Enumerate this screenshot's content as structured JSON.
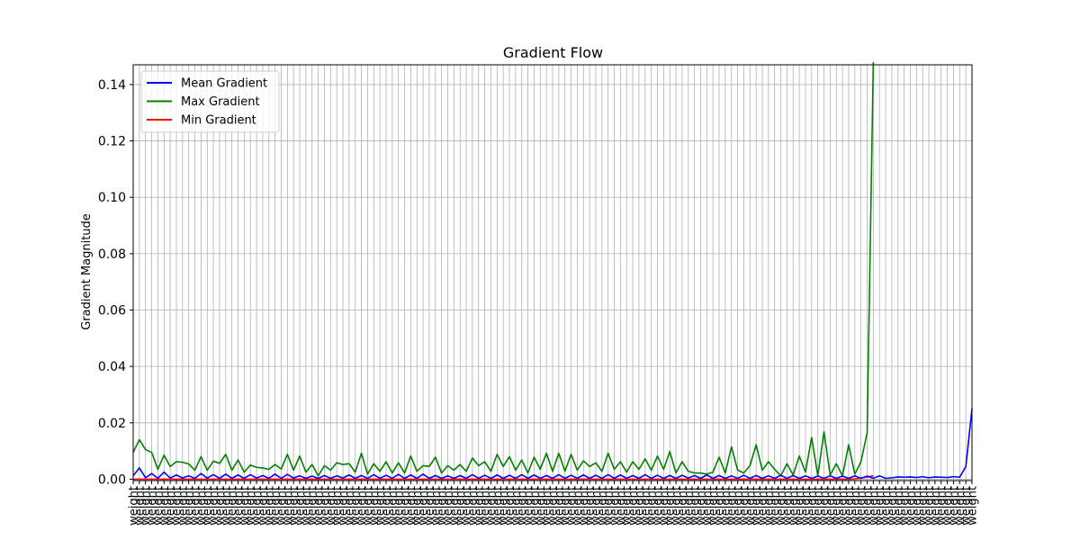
{
  "chart_data": {
    "type": "line",
    "title": "Gradient Flow",
    "xlabel": "",
    "ylabel": "Gradient Magnitude",
    "x_tick_label": "weight",
    "ylim": [
      -0.0005,
      0.147
    ],
    "yticks": [
      0.0,
      0.02,
      0.04,
      0.06,
      0.08,
      0.1,
      0.12,
      0.14
    ],
    "ytick_labels": [
      "0.00",
      "0.02",
      "0.04",
      "0.06",
      "0.08",
      "0.10",
      "0.12",
      "0.14"
    ],
    "grid": true,
    "legend_position": "top-left",
    "series": [
      {
        "name": "Mean Gradient",
        "color": "#0000ff",
        "values": [
          0.0012,
          0.004,
          0.0005,
          0.002,
          0.0003,
          0.0025,
          0.0004,
          0.0015,
          0.0004,
          0.0012,
          0.0003,
          0.002,
          0.0004,
          0.0016,
          0.0003,
          0.0018,
          0.0003,
          0.0015,
          0.0003,
          0.0016,
          0.0004,
          0.0013,
          0.0003,
          0.0018,
          0.0003,
          0.0017,
          0.0004,
          0.0012,
          0.0003,
          0.0011,
          0.0003,
          0.0013,
          0.0003,
          0.0012,
          0.0004,
          0.0015,
          0.0003,
          0.0013,
          0.0003,
          0.0016,
          0.0003,
          0.0014,
          0.0003,
          0.0017,
          0.0003,
          0.0015,
          0.0003,
          0.0018,
          0.0003,
          0.0013,
          0.0003,
          0.0012,
          0.0003,
          0.0013,
          0.0003,
          0.0016,
          0.0003,
          0.0014,
          0.0003,
          0.0015,
          0.0003,
          0.0014,
          0.0003,
          0.0016,
          0.0003,
          0.0015,
          0.0003,
          0.0013,
          0.0003,
          0.0016,
          0.0003,
          0.0014,
          0.0003,
          0.0015,
          0.0003,
          0.0014,
          0.0003,
          0.0016,
          0.0003,
          0.0015,
          0.0003,
          0.0013,
          0.0003,
          0.0016,
          0.0003,
          0.0014,
          0.0003,
          0.0013,
          0.0003,
          0.0014,
          0.0004,
          0.0013,
          0.0003,
          0.0015,
          0.0003,
          0.0013,
          0.0003,
          0.0012,
          0.0003,
          0.0014,
          0.0003,
          0.0013,
          0.0003,
          0.0012,
          0.0003,
          0.0014,
          0.0003,
          0.0013,
          0.0003,
          0.0012,
          0.0003,
          0.0011,
          0.0003,
          0.0012,
          0.0003,
          0.0011,
          0.0003,
          0.0012,
          0.0003,
          0.0011,
          0.0003,
          0.0012,
          0.0003,
          0.0005,
          0.0008,
          0.0007,
          0.0008,
          0.0006,
          0.0009,
          0.0005,
          0.0008,
          0.0007,
          0.0006,
          0.0009,
          0.0007,
          0.0045,
          0.025
        ]
      },
      {
        "name": "Max Gradient",
        "color": "#008000",
        "values": [
          0.0095,
          0.014,
          0.0105,
          0.0095,
          0.0035,
          0.0085,
          0.0045,
          0.0062,
          0.006,
          0.0054,
          0.0032,
          0.008,
          0.0032,
          0.0064,
          0.0056,
          0.0088,
          0.0032,
          0.0068,
          0.0025,
          0.005,
          0.0042,
          0.004,
          0.0035,
          0.0052,
          0.0036,
          0.0088,
          0.0032,
          0.0082,
          0.0025,
          0.0052,
          0.0012,
          0.0048,
          0.0032,
          0.0058,
          0.0052,
          0.0055,
          0.0025,
          0.0092,
          0.0018,
          0.0055,
          0.0028,
          0.0062,
          0.0022,
          0.0058,
          0.0022,
          0.0082,
          0.0028,
          0.0048,
          0.0045,
          0.0078,
          0.0022,
          0.0048,
          0.0032,
          0.0052,
          0.0028,
          0.0075,
          0.0048,
          0.0062,
          0.0028,
          0.0088,
          0.0045,
          0.008,
          0.0032,
          0.0068,
          0.0022,
          0.0078,
          0.0035,
          0.0092,
          0.0028,
          0.0092,
          0.0028,
          0.0088,
          0.0032,
          0.0065,
          0.0045,
          0.0058,
          0.0028,
          0.0092,
          0.0035,
          0.0062,
          0.0025,
          0.0062,
          0.0035,
          0.0072,
          0.0032,
          0.0082,
          0.0035,
          0.0098,
          0.0022,
          0.0062,
          0.0028,
          0.0022,
          0.0022,
          0.0018,
          0.0025,
          0.0078,
          0.0022,
          0.0115,
          0.0032,
          0.0022,
          0.0048,
          0.0122,
          0.0032,
          0.0062,
          0.0035,
          0.0012,
          0.0055,
          0.0015,
          0.0082,
          0.0025,
          0.0148,
          0.0012,
          0.0168,
          0.0015,
          0.0055,
          0.0012,
          0.0122,
          0.0018,
          0.0062,
          0.0165,
          0.148
        ]
      },
      {
        "name": "Min Gradient",
        "color": "#ff0000",
        "values": [
          0,
          0,
          0,
          0,
          0,
          0,
          0,
          0,
          0,
          0,
          0,
          0,
          0,
          0,
          0,
          0,
          0,
          0,
          0,
          0,
          0,
          0,
          0,
          0,
          0,
          0,
          0,
          0,
          0,
          0,
          0,
          0,
          0,
          0,
          0,
          0,
          0,
          0,
          0,
          0,
          0,
          0,
          0,
          0,
          0,
          0,
          0,
          0,
          0,
          0,
          0,
          0,
          0,
          0,
          0,
          0,
          0,
          0,
          0,
          0,
          0,
          0,
          0,
          0,
          0,
          0,
          0,
          0,
          0,
          0,
          0,
          0,
          0,
          0,
          0,
          0,
          0,
          0,
          0,
          0,
          0,
          0,
          0,
          0,
          0,
          0,
          0,
          0,
          0,
          0,
          0,
          0,
          0,
          0,
          0,
          0,
          0,
          0,
          0,
          0,
          0,
          0,
          0,
          0,
          0,
          0,
          0,
          0,
          0,
          0,
          0,
          0,
          0,
          0,
          0,
          0,
          0,
          0.0001,
          0.0004,
          0.0008,
          0.0012
        ]
      }
    ]
  }
}
